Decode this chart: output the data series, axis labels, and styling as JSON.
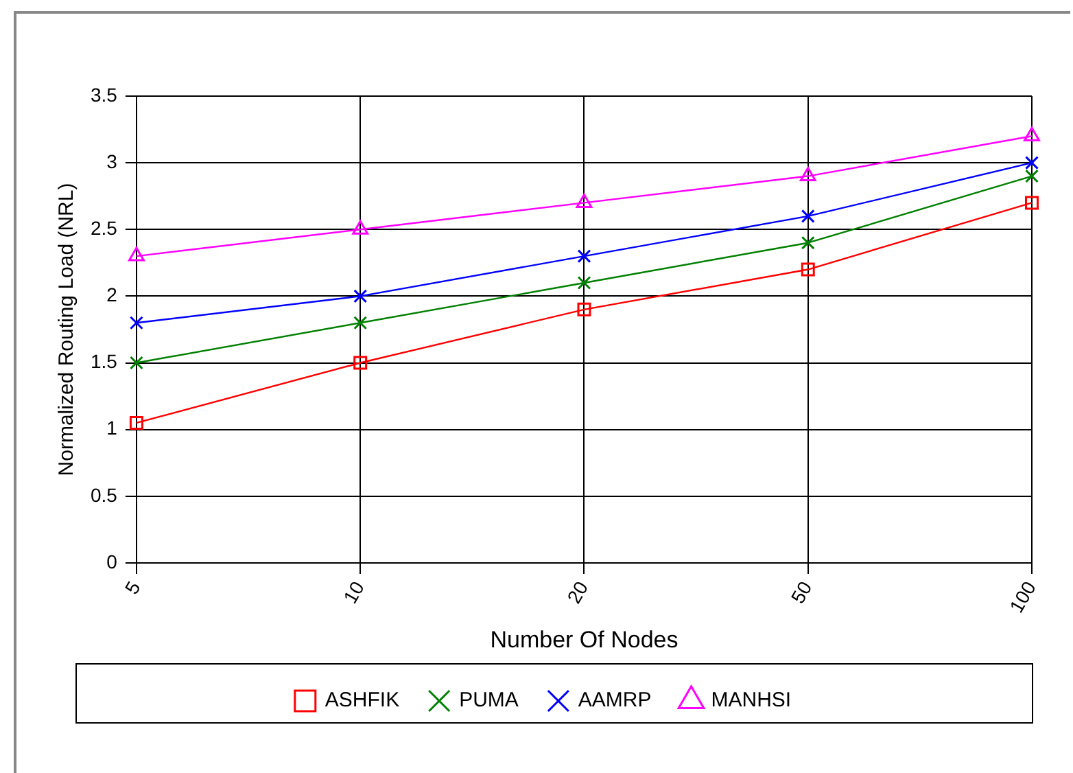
{
  "chart_data": {
    "type": "line",
    "xlabel": "Number Of Nodes",
    "ylabel": "Normalized Routing Load (NRL)",
    "categories": [
      "5",
      "10",
      "20",
      "50",
      "100"
    ],
    "ylim": [
      0,
      3.5
    ],
    "yticks": [
      0,
      0.5,
      1,
      1.5,
      2,
      2.5,
      3,
      3.5
    ],
    "grid": true,
    "legend": "bottom",
    "line_style": "solid",
    "series": [
      {
        "name": "ASHFIK",
        "color": "#ff0000",
        "marker": "square",
        "values": [
          1.05,
          1.5,
          1.9,
          2.2,
          2.7
        ]
      },
      {
        "name": "PUMA",
        "color": "#008000",
        "marker": "cross",
        "values": [
          1.5,
          1.8,
          2.1,
          2.4,
          2.9
        ]
      },
      {
        "name": "AAMRP",
        "color": "#0000ff",
        "marker": "cross",
        "values": [
          1.8,
          2.0,
          2.3,
          2.6,
          3.0
        ]
      },
      {
        "name": "MANHSI",
        "color": "#ff00ff",
        "marker": "triangle",
        "values": [
          2.3,
          2.5,
          2.7,
          2.9,
          3.2
        ]
      }
    ]
  }
}
